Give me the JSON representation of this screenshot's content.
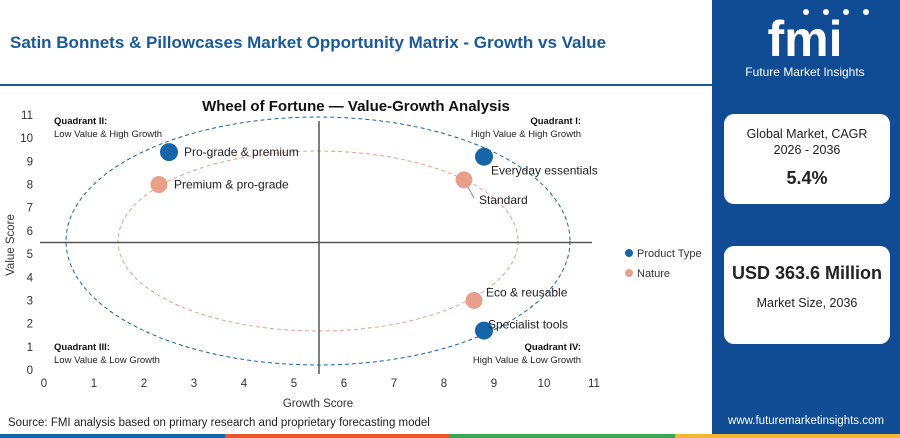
{
  "header": {
    "title": "Satin Bonnets & Pillowcases Market Opportunity Matrix - Growth vs Value"
  },
  "chart_data": {
    "type": "scatter",
    "title": "Wheel of Fortune — Value-Growth Analysis",
    "xlabel": "Growth Score",
    "ylabel": "Value Score",
    "xlim": [
      0,
      11
    ],
    "ylim": [
      0,
      11
    ],
    "xticks": [
      0,
      1,
      2,
      3,
      4,
      5,
      6,
      7,
      8,
      9,
      10,
      11
    ],
    "yticks": [
      0,
      1,
      2,
      3,
      4,
      5,
      6,
      7,
      8,
      9,
      10,
      11
    ],
    "divider_x": 5.5,
    "divider_y": 5.5,
    "legend_position": "right",
    "series": [
      {
        "name": "Product Type",
        "color": "#1565a8",
        "points": [
          {
            "label": "Pro-grade & premium",
            "x": 2.5,
            "y": 9.4
          },
          {
            "label": "Everyday essentials",
            "x": 8.8,
            "y": 9.2
          },
          {
            "label": "Specialist tools",
            "x": 8.8,
            "y": 1.7
          }
        ]
      },
      {
        "name": "Nature",
        "color": "#e8a08a",
        "points": [
          {
            "label": "Premium & pro-grade",
            "x": 2.3,
            "y": 8.0
          },
          {
            "label": "Standard",
            "x": 8.4,
            "y": 8.2
          },
          {
            "label": "Eco & reusable",
            "x": 8.6,
            "y": 3.0
          }
        ]
      }
    ],
    "quadrants": [
      {
        "title": "Quadrant II:",
        "subtitle": "Low Value & High Growth"
      },
      {
        "title": "Quadrant I:",
        "subtitle": "High Value & High Growth"
      },
      {
        "title": "Quadrant III:",
        "subtitle": "Low Value & Low Growth"
      },
      {
        "title": "Quadrant IV:",
        "subtitle": "High Value & Low Growth"
      }
    ]
  },
  "sidebar": {
    "logo_text": "fmi",
    "logo_subtext": "Future Market Insights",
    "cagr_label": "Global Market, CAGR 2026 - 2036",
    "cagr_value": "5.4%",
    "market_size_value": "USD 363.6 Million",
    "market_size_label": "Market Size, 2036",
    "website": "www.futuremarketinsights.com"
  },
  "footer": {
    "source": "Source: FMI analysis based on primary research and proprietary forecasting model",
    "bar_colors": [
      "#1565a8",
      "#e8572a",
      "#3aa655",
      "#f2b632"
    ]
  }
}
